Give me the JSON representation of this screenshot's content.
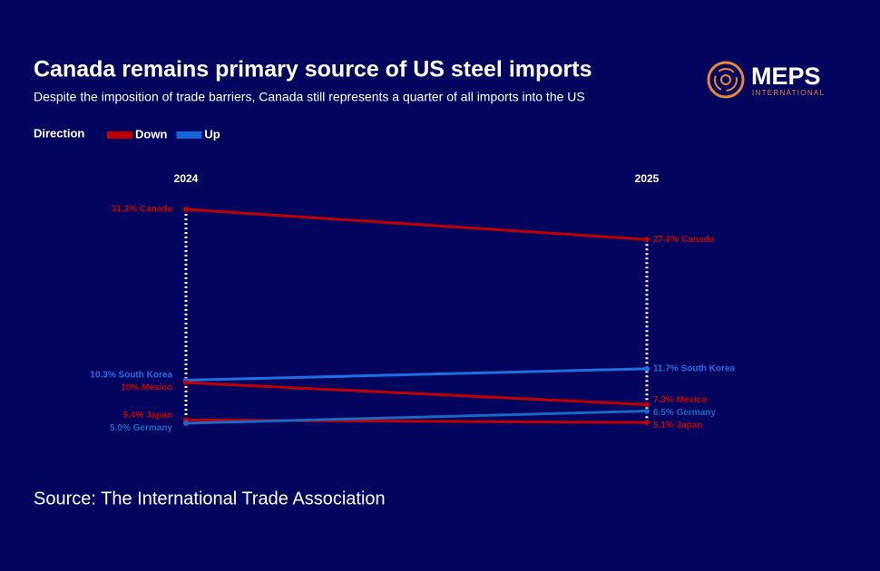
{
  "chart_data": {
    "type": "slope",
    "title": "Canada remains primary source of US steel imports",
    "subtitle": "Despite the imposition of trade barriers, Canada still represents a quarter of all imports into the US",
    "categories": [
      "2024",
      "2025"
    ],
    "legend": {
      "title": "Direction",
      "items": [
        {
          "name": "Down",
          "color": "#c00000"
        },
        {
          "name": "Up",
          "color": "#1565d8"
        }
      ]
    },
    "series": [
      {
        "color": "#c00000",
        "values": [
          31.3,
          27.6
        ],
        "value_labels": [
          "31.3% Canada",
          "27.6% Canada"
        ]
      },
      {
        "color": "#1e6fe0",
        "values": [
          10.3,
          11.7
        ],
        "value_labels": [
          "10.3% South Korea",
          "11.7% South Korea"
        ]
      },
      {
        "color": "#c00000",
        "values": [
          10,
          7.3
        ],
        "value_labels": [
          "10% Mexico",
          "7.3% Mexico"
        ]
      },
      {
        "color": "#c00000",
        "values": [
          5.4,
          5.1
        ],
        "value_labels": [
          "5.4% Japan",
          "5.1% Japan"
        ]
      },
      {
        "color": "#1a68c4",
        "values": [
          5.0,
          6.5
        ],
        "value_labels": [
          "5.0% Germany",
          "6.5% Germany"
        ]
      }
    ],
    "source": "Source: The International Trade Association"
  },
  "logo": {
    "name": "MEPS",
    "subtitle": "INTERNATIONAL"
  }
}
